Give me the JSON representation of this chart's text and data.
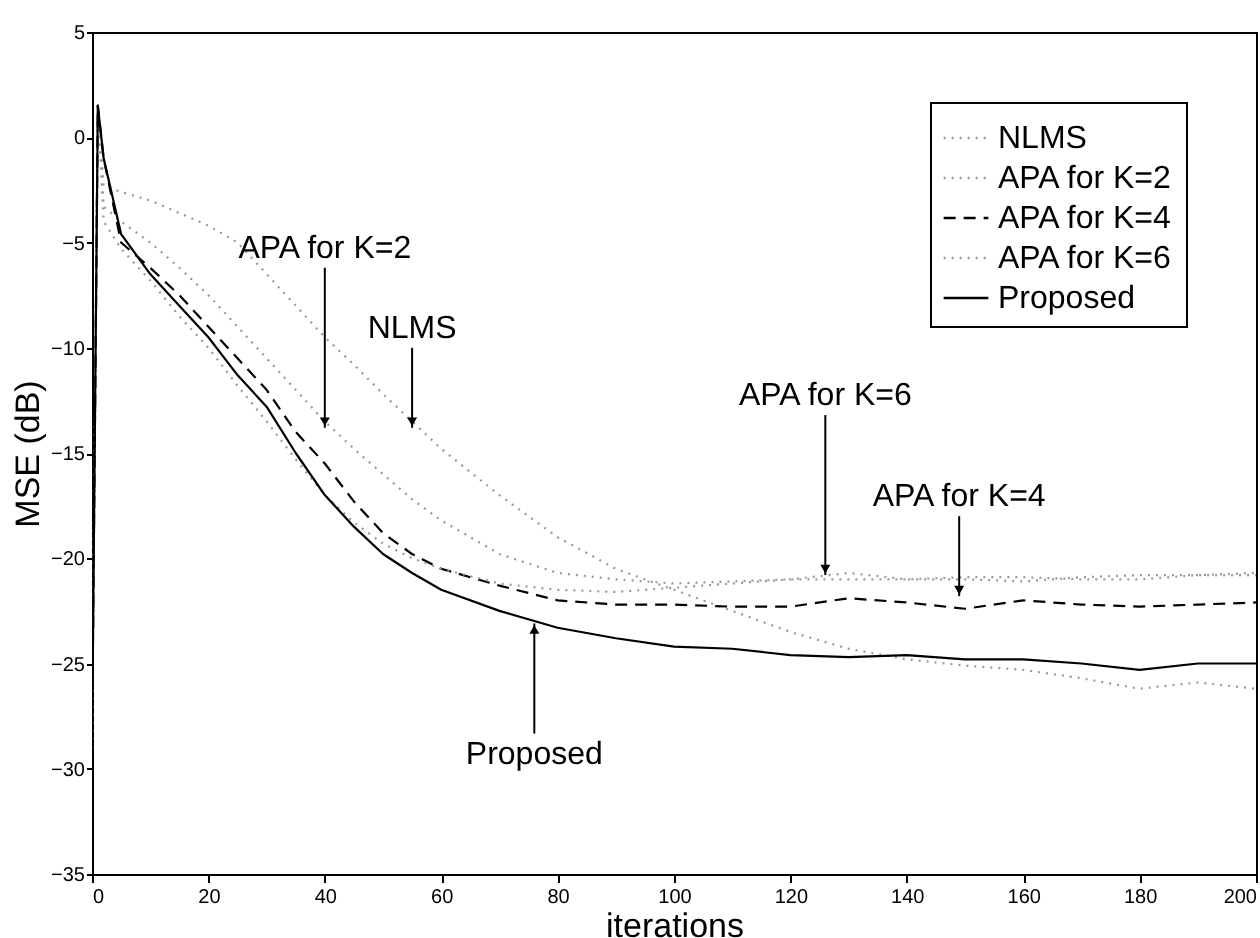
{
  "chart_data": {
    "type": "line",
    "xlabel": "iterations",
    "ylabel": "MSE (dB)",
    "xlim": [
      0,
      200
    ],
    "ylim": [
      -35,
      5
    ],
    "xticks": [
      0,
      20,
      40,
      60,
      80,
      100,
      120,
      140,
      160,
      180,
      200
    ],
    "yticks": [
      -35,
      -30,
      -25,
      -20,
      -15,
      -10,
      -5,
      0,
      5
    ],
    "grid": false,
    "legend": "top right",
    "x": [
      0,
      1,
      2,
      5,
      10,
      15,
      20,
      25,
      30,
      35,
      40,
      45,
      50,
      55,
      60,
      70,
      80,
      90,
      100,
      110,
      120,
      130,
      140,
      150,
      160,
      170,
      180,
      190,
      200
    ],
    "series": [
      {
        "name": "NLMS",
        "color": "#999999",
        "line_style": "dotted",
        "values": [
          -29,
          1.5,
          -2.3,
          -2.6,
          -3,
          -3.6,
          -4.2,
          -5,
          -6.5,
          -8,
          -9.5,
          -10.8,
          -12.2,
          -13.5,
          -14.8,
          -17,
          -19,
          -20.5,
          -21.5,
          -22.5,
          -23.5,
          -24.3,
          -24.8,
          -25.1,
          -25.3,
          -25.7,
          -26.2,
          -25.9,
          -26.2
        ]
      },
      {
        "name": "APA for K=2",
        "color": "#999999",
        "line_style": "dotted",
        "values": [
          -29,
          1.5,
          -3.3,
          -4,
          -5,
          -6.2,
          -7.5,
          -9,
          -10.5,
          -12,
          -13.5,
          -14.8,
          -16,
          -17.2,
          -18.2,
          -19.8,
          -20.7,
          -21,
          -21.2,
          -21.1,
          -21,
          -21,
          -21,
          -20.9,
          -20.9,
          -21,
          -21,
          -20.8,
          -20.8
        ]
      },
      {
        "name": "APA for K=4",
        "color": "#000000",
        "line_style": "dashed",
        "values": [
          -29,
          1.5,
          -1,
          -5,
          -6.2,
          -7.5,
          -9,
          -10.5,
          -12,
          -14,
          -15.5,
          -17.3,
          -18.8,
          -19.8,
          -20.5,
          -21.3,
          -22,
          -22.2,
          -22.2,
          -22.3,
          -22.3,
          -21.9,
          -22.1,
          -22.4,
          -22,
          -22.2,
          -22.3,
          -22.2,
          -22.1
        ]
      },
      {
        "name": "APA for K=6",
        "color": "#999999",
        "line_style": "dotted",
        "values": [
          -29,
          1.5,
          -4,
          -5.3,
          -6.8,
          -8.5,
          -10,
          -11.8,
          -13.5,
          -15.3,
          -17,
          -18.3,
          -19.3,
          -20,
          -20.5,
          -21.2,
          -21.5,
          -21.6,
          -21.4,
          -21.2,
          -21,
          -20.7,
          -21,
          -21,
          -21.1,
          -20.9,
          -20.8,
          -20.8,
          -20.7
        ]
      },
      {
        "name": "Proposed",
        "color": "#000000",
        "line_style": "solid",
        "values": [
          -29,
          1.5,
          -1,
          -4.6,
          -6.5,
          -8,
          -9.5,
          -11.3,
          -12.8,
          -15,
          -17,
          -18.5,
          -19.8,
          -20.7,
          -21.5,
          -22.5,
          -23.3,
          -23.8,
          -24.2,
          -24.3,
          -24.6,
          -24.7,
          -24.6,
          -24.8,
          -24.8,
          -25,
          -25.3,
          -25,
          -25
        ]
      }
    ],
    "annotations": [
      {
        "text": "APA for K=2",
        "x": 40,
        "y": -13.8
      },
      {
        "text": "NLMS",
        "x": 55,
        "y": -13.8
      },
      {
        "text": "APA for K=6",
        "x": 126,
        "y": -20.8
      },
      {
        "text": "APA for K=4",
        "x": 149,
        "y": -21.8
      },
      {
        "text": "Proposed",
        "x": 76,
        "y": -23.1
      }
    ]
  }
}
